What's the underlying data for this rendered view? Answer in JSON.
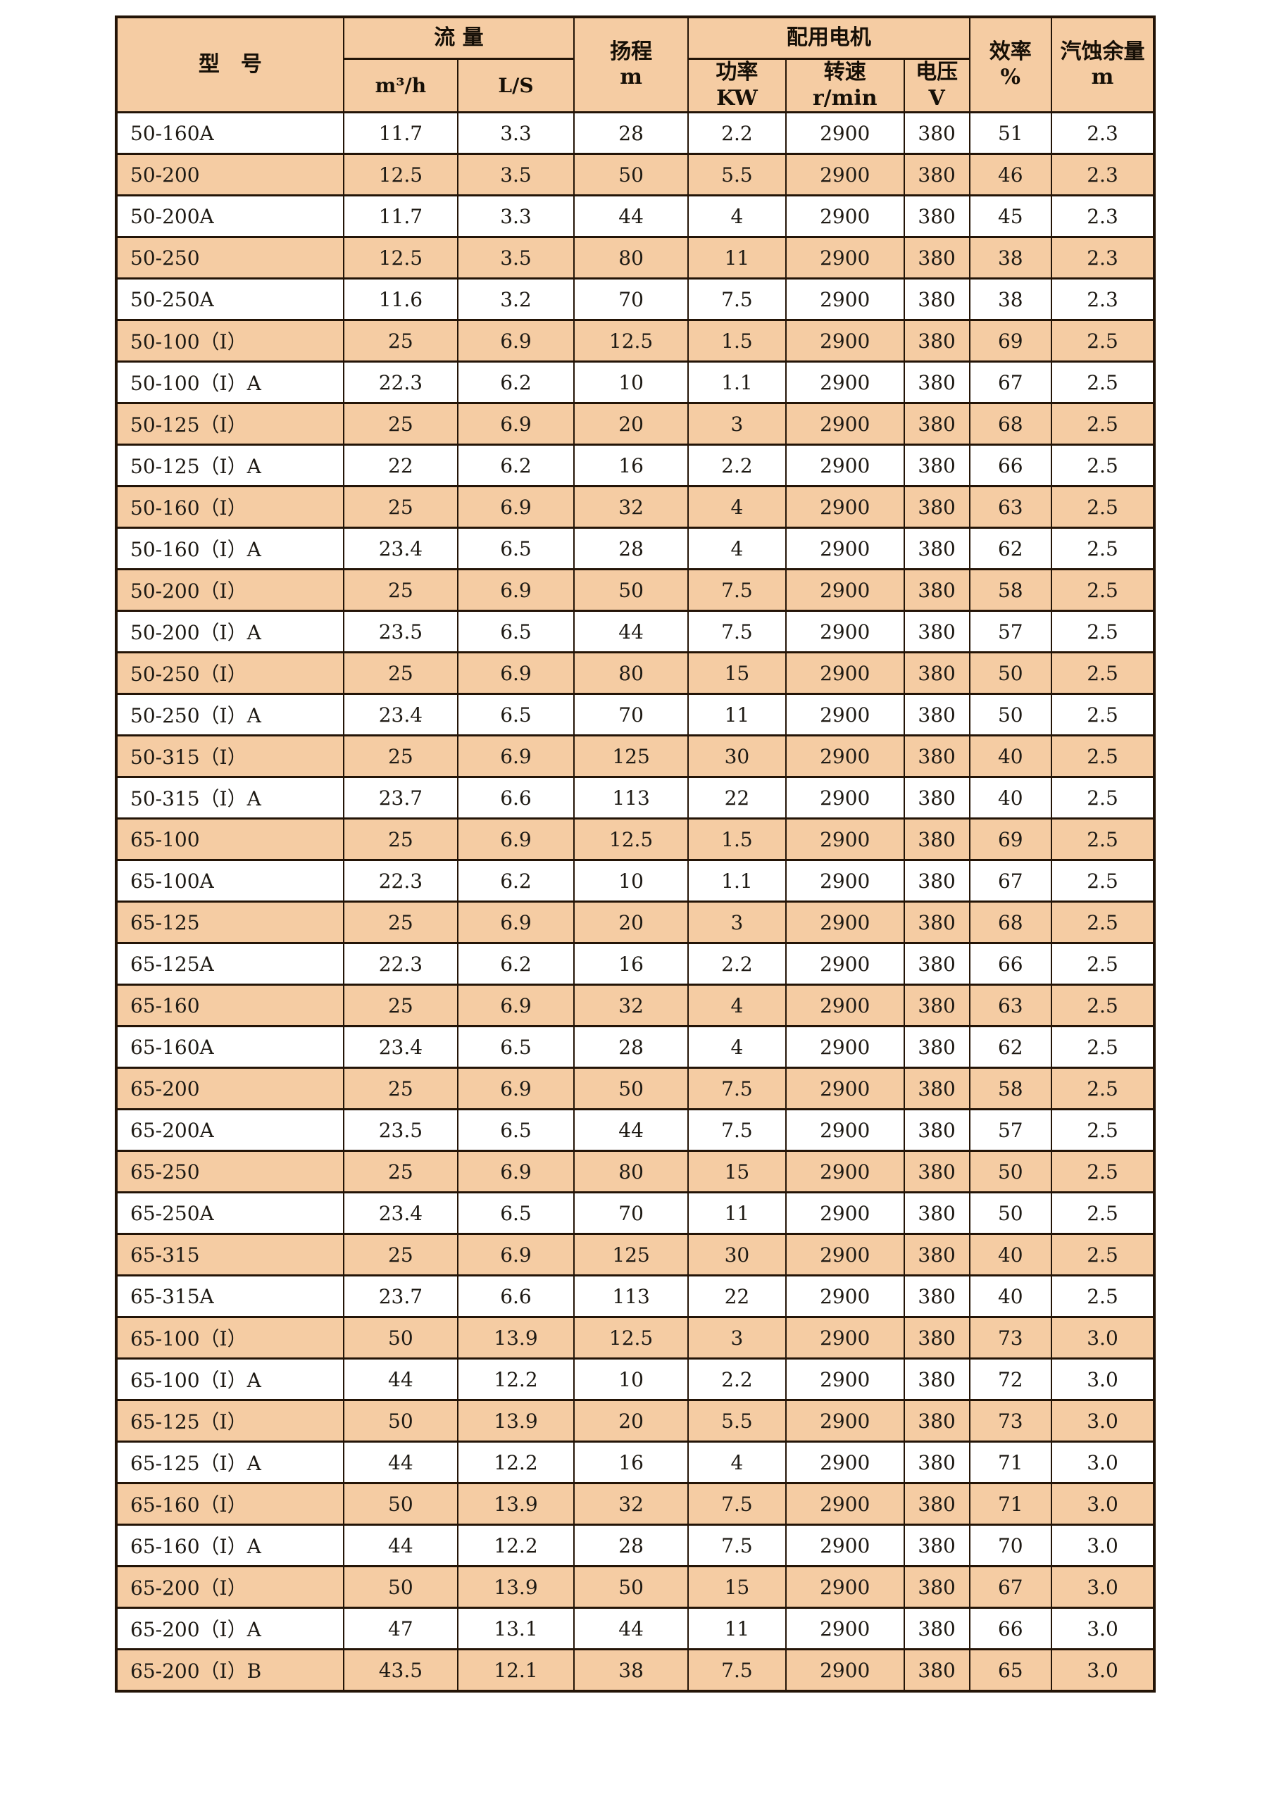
{
  "colors": {
    "stripe": "#f5cca3",
    "header_bg": "#f5cca3",
    "border": "#231407",
    "page_bg": "#ffffff",
    "text": "#1e1a14"
  },
  "table": {
    "header": {
      "model": "型　号",
      "flow": "流 量",
      "flow_units": [
        "m³/h",
        "L/S"
      ],
      "head": "扬程\nm",
      "motor": "配用电机",
      "motor_subs": [
        "功率\nKW",
        "转速\nr/min",
        "电压\nV"
      ],
      "efficiency": "效率\n%",
      "npsh": "汽蚀余量\nm"
    },
    "rows": [
      [
        "50-160A",
        "11.7",
        "3.3",
        "28",
        "2.2",
        "2900",
        "380",
        "51",
        "2.3"
      ],
      [
        "50-200",
        "12.5",
        "3.5",
        "50",
        "5.5",
        "2900",
        "380",
        "46",
        "2.3"
      ],
      [
        "50-200A",
        "11.7",
        "3.3",
        "44",
        "4",
        "2900",
        "380",
        "45",
        "2.3"
      ],
      [
        "50-250",
        "12.5",
        "3.5",
        "80",
        "11",
        "2900",
        "380",
        "38",
        "2.3"
      ],
      [
        "50-250A",
        "11.6",
        "3.2",
        "70",
        "7.5",
        "2900",
        "380",
        "38",
        "2.3"
      ],
      [
        "50-100（I）",
        "25",
        "6.9",
        "12.5",
        "1.5",
        "2900",
        "380",
        "69",
        "2.5"
      ],
      [
        "50-100（I）A",
        "22.3",
        "6.2",
        "10",
        "1.1",
        "2900",
        "380",
        "67",
        "2.5"
      ],
      [
        "50-125（I）",
        "25",
        "6.9",
        "20",
        "3",
        "2900",
        "380",
        "68",
        "2.5"
      ],
      [
        "50-125（I）A",
        "22",
        "6.2",
        "16",
        "2.2",
        "2900",
        "380",
        "66",
        "2.5"
      ],
      [
        "50-160（I）",
        "25",
        "6.9",
        "32",
        "4",
        "2900",
        "380",
        "63",
        "2.5"
      ],
      [
        "50-160（I）A",
        "23.4",
        "6.5",
        "28",
        "4",
        "2900",
        "380",
        "62",
        "2.5"
      ],
      [
        "50-200（I）",
        "25",
        "6.9",
        "50",
        "7.5",
        "2900",
        "380",
        "58",
        "2.5"
      ],
      [
        "50-200（I）A",
        "23.5",
        "6.5",
        "44",
        "7.5",
        "2900",
        "380",
        "57",
        "2.5"
      ],
      [
        "50-250（I）",
        "25",
        "6.9",
        "80",
        "15",
        "2900",
        "380",
        "50",
        "2.5"
      ],
      [
        "50-250（I）A",
        "23.4",
        "6.5",
        "70",
        "11",
        "2900",
        "380",
        "50",
        "2.5"
      ],
      [
        "50-315（I）",
        "25",
        "6.9",
        "125",
        "30",
        "2900",
        "380",
        "40",
        "2.5"
      ],
      [
        "50-315（I）A",
        "23.7",
        "6.6",
        "113",
        "22",
        "2900",
        "380",
        "40",
        "2.5"
      ],
      [
        "65-100",
        "25",
        "6.9",
        "12.5",
        "1.5",
        "2900",
        "380",
        "69",
        "2.5"
      ],
      [
        "65-100A",
        "22.3",
        "6.2",
        "10",
        "1.1",
        "2900",
        "380",
        "67",
        "2.5"
      ],
      [
        "65-125",
        "25",
        "6.9",
        "20",
        "3",
        "2900",
        "380",
        "68",
        "2.5"
      ],
      [
        "65-125A",
        "22.3",
        "6.2",
        "16",
        "2.2",
        "2900",
        "380",
        "66",
        "2.5"
      ],
      [
        "65-160",
        "25",
        "6.9",
        "32",
        "4",
        "2900",
        "380",
        "63",
        "2.5"
      ],
      [
        "65-160A",
        "23.4",
        "6.5",
        "28",
        "4",
        "2900",
        "380",
        "62",
        "2.5"
      ],
      [
        "65-200",
        "25",
        "6.9",
        "50",
        "7.5",
        "2900",
        "380",
        "58",
        "2.5"
      ],
      [
        "65-200A",
        "23.5",
        "6.5",
        "44",
        "7.5",
        "2900",
        "380",
        "57",
        "2.5"
      ],
      [
        "65-250",
        "25",
        "6.9",
        "80",
        "15",
        "2900",
        "380",
        "50",
        "2.5"
      ],
      [
        "65-250A",
        "23.4",
        "6.5",
        "70",
        "11",
        "2900",
        "380",
        "50",
        "2.5"
      ],
      [
        "65-315",
        "25",
        "6.9",
        "125",
        "30",
        "2900",
        "380",
        "40",
        "2.5"
      ],
      [
        "65-315A",
        "23.7",
        "6.6",
        "113",
        "22",
        "2900",
        "380",
        "40",
        "2.5"
      ],
      [
        "65-100（I）",
        "50",
        "13.9",
        "12.5",
        "3",
        "2900",
        "380",
        "73",
        "3.0"
      ],
      [
        "65-100（I）A",
        "44",
        "12.2",
        "10",
        "2.2",
        "2900",
        "380",
        "72",
        "3.0"
      ],
      [
        "65-125（I）",
        "50",
        "13.9",
        "20",
        "5.5",
        "2900",
        "380",
        "73",
        "3.0"
      ],
      [
        "65-125（I）A",
        "44",
        "12.2",
        "16",
        "4",
        "2900",
        "380",
        "71",
        "3.0"
      ],
      [
        "65-160（I）",
        "50",
        "13.9",
        "32",
        "7.5",
        "2900",
        "380",
        "71",
        "3.0"
      ],
      [
        "65-160（I）A",
        "44",
        "12.2",
        "28",
        "7.5",
        "2900",
        "380",
        "70",
        "3.0"
      ],
      [
        "65-200（I）",
        "50",
        "13.9",
        "50",
        "15",
        "2900",
        "380",
        "67",
        "3.0"
      ],
      [
        "65-200（I）A",
        "47",
        "13.1",
        "44",
        "11",
        "2900",
        "380",
        "66",
        "3.0"
      ],
      [
        "65-200（I）B",
        "43.5",
        "12.1",
        "38",
        "7.5",
        "2900",
        "380",
        "65",
        "3.0"
      ]
    ]
  }
}
